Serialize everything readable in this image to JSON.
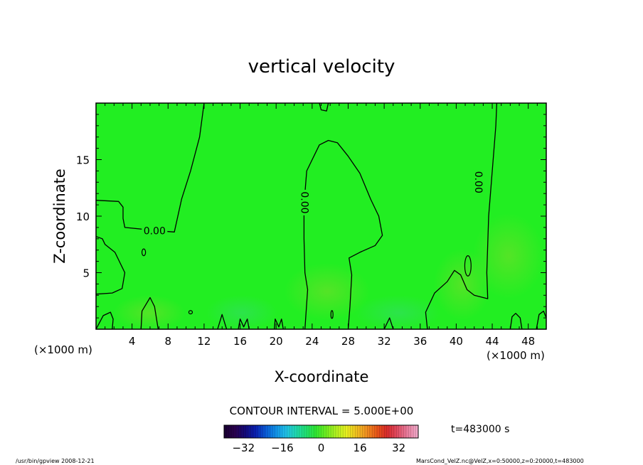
{
  "chart_data": {
    "type": "heatmap",
    "title": "vertical velocity",
    "xlabel": "X-coordinate",
    "ylabel": "Z-coordinate",
    "x_unit_left": "(×1000 m)",
    "x_unit_right": "(×1000 m)",
    "xlim": [
      0,
      50
    ],
    "ylim": [
      0,
      20
    ],
    "x_ticks": [
      4,
      8,
      12,
      16,
      20,
      24,
      28,
      32,
      36,
      40,
      44,
      48
    ],
    "y_ticks": [
      5,
      10,
      15
    ],
    "grid": false,
    "contour_interval": "CONTOUR INTERVAL = 5.000E+00",
    "contour_label_value": "0.00",
    "contour_label_points": [
      {
        "x": 6.5,
        "z": 8.7,
        "rotate": 0
      },
      {
        "x": 23.2,
        "z": 11.2,
        "rotate": 90
      },
      {
        "x": 42.5,
        "z": 13.0,
        "rotate": 90
      }
    ],
    "contours_zero": [
      [
        [
          12.0,
          20
        ],
        [
          11.5,
          17
        ],
        [
          10.5,
          14
        ],
        [
          9.5,
          11.5
        ],
        [
          8.7,
          8.6
        ],
        [
          7.0,
          8.7
        ],
        [
          3.2,
          9.0
        ],
        [
          3.0,
          9.8
        ],
        [
          3.0,
          10.8
        ],
        [
          2.5,
          11.3
        ],
        [
          0,
          11.4
        ]
      ],
      [
        [
          0,
          8.2
        ],
        [
          0.7,
          8.0
        ],
        [
          1.0,
          7.5
        ],
        [
          2.1,
          6.8
        ],
        [
          3.2,
          5.0
        ],
        [
          2.9,
          3.6
        ],
        [
          1.8,
          3.2
        ],
        [
          0,
          3.1
        ]
      ],
      [
        [
          0,
          0
        ],
        [
          0.8,
          1.2
        ],
        [
          1.6,
          1.5
        ],
        [
          1.9,
          0.9
        ],
        [
          1.8,
          0
        ]
      ],
      [
        [
          5.0,
          0
        ],
        [
          5.1,
          1.6
        ],
        [
          6.0,
          2.8
        ],
        [
          6.5,
          2.0
        ],
        [
          6.9,
          0
        ]
      ],
      [
        [
          23.2,
          0
        ],
        [
          23.5,
          3.5
        ],
        [
          23.2,
          5.0
        ],
        [
          23.1,
          8.0
        ],
        [
          23.1,
          11.0
        ],
        [
          23.4,
          14.0
        ],
        [
          24.8,
          16.3
        ],
        [
          25.8,
          16.7
        ],
        [
          26.8,
          16.5
        ],
        [
          28.0,
          15.3
        ],
        [
          29.3,
          13.8
        ],
        [
          30.5,
          11.5
        ],
        [
          31.4,
          10.0
        ],
        [
          31.8,
          8.3
        ],
        [
          31.0,
          7.4
        ],
        [
          29.3,
          6.8
        ],
        [
          28.1,
          6.3
        ],
        [
          28.4,
          4.8
        ],
        [
          28.2,
          2.0
        ],
        [
          28.0,
          0
        ]
      ],
      [
        [
          36.8,
          0
        ],
        [
          36.6,
          1.5
        ],
        [
          37.6,
          3.2
        ],
        [
          39.0,
          4.2
        ],
        [
          39.8,
          5.2
        ],
        [
          40.5,
          4.8
        ],
        [
          41.2,
          3.5
        ],
        [
          42.0,
          3.0
        ],
        [
          43.5,
          2.7
        ],
        [
          43.4,
          5.0
        ],
        [
          43.5,
          7.5
        ],
        [
          43.6,
          10.0
        ],
        [
          43.9,
          13.0
        ],
        [
          44.2,
          16.0
        ],
        [
          44.4,
          18.0
        ],
        [
          44.5,
          20
        ]
      ],
      [
        [
          19.8,
          0
        ],
        [
          19.9,
          0.9
        ],
        [
          20.3,
          0.2
        ],
        [
          20.6,
          0.9
        ],
        [
          20.8,
          0
        ]
      ],
      [
        [
          15.8,
          0
        ],
        [
          16.0,
          0.9
        ],
        [
          16.4,
          0.2
        ],
        [
          16.8,
          0.9
        ],
        [
          17.0,
          0
        ]
      ],
      [
        [
          13.5,
          0
        ],
        [
          14.0,
          1.3
        ],
        [
          14.5,
          0
        ]
      ],
      [
        [
          32.0,
          0
        ],
        [
          32.6,
          1.0
        ],
        [
          33.0,
          0
        ]
      ],
      [
        [
          46.0,
          0
        ],
        [
          46.2,
          1.1
        ],
        [
          46.6,
          1.4
        ],
        [
          47.1,
          1.0
        ],
        [
          47.3,
          0
        ]
      ],
      [
        [
          48.9,
          0
        ],
        [
          49.2,
          1.3
        ],
        [
          49.7,
          1.6
        ],
        [
          50,
          1.0
        ]
      ],
      [
        [
          24.8,
          20
        ],
        [
          25.0,
          19.4
        ],
        [
          25.6,
          19.3
        ],
        [
          25.8,
          20
        ]
      ]
    ],
    "contours_small": [
      {
        "x": 5.3,
        "z": 6.8,
        "rx": 0.2,
        "rz": 0.3
      },
      {
        "x": 10.5,
        "z": 1.5,
        "rx": 0.2,
        "rz": 0.15
      },
      {
        "x": 41.3,
        "z": 5.6,
        "rx": 0.35,
        "rz": 0.9
      },
      {
        "x": 26.2,
        "z": 1.3,
        "rx": 0.1,
        "rz": 0.35
      }
    ],
    "field_background": "#22ee22",
    "colorbar": {
      "ticks": [
        -32,
        -16,
        0,
        16,
        32
      ],
      "min": -40,
      "max": 40,
      "colors": [
        "#1a0033",
        "#2a004f",
        "#120a7a",
        "#0a1fb0",
        "#0a5ad6",
        "#1090e8",
        "#20c0e8",
        "#20d8b0",
        "#20e070",
        "#30e830",
        "#70ee20",
        "#b0f020",
        "#e8f020",
        "#f0c020",
        "#f09020",
        "#e85818",
        "#d82a2a",
        "#e04a60",
        "#e87a9a",
        "#f0a8c8"
      ]
    },
    "time_label": "t=483000 s"
  },
  "footer": {
    "left": "/usr/bin/gpview   2008-12-21",
    "right": "MarsCond_VelZ.nc@VelZ,x=0:50000,z=0:20000,t=483000"
  }
}
